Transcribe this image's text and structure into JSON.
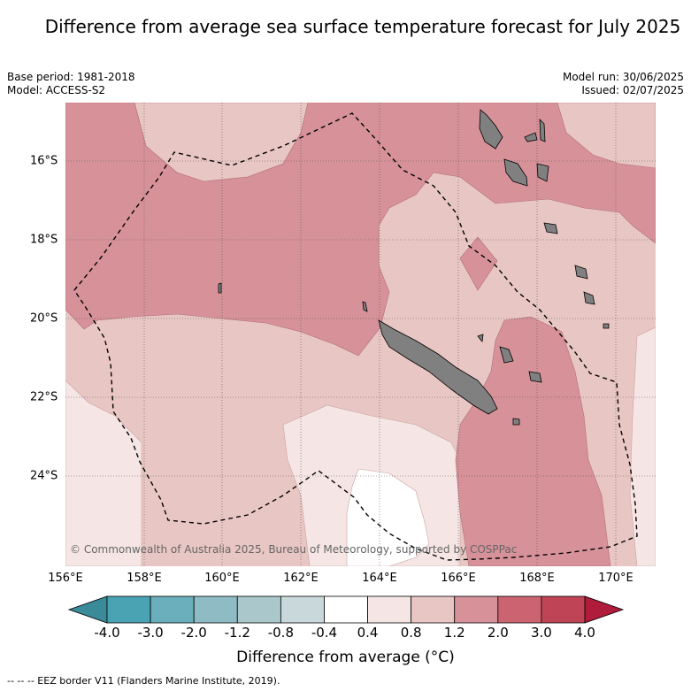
{
  "title": "Difference from average sea surface temperature forecast for July 2025",
  "base_period": "Base period: 1981-2018",
  "model": "Model: ACCESS-S2",
  "model_run": "Model run: 30/06/2025",
  "issued": "Issued: 02/07/2025",
  "copyright": "© Commonwealth of Australia 2025, Bureau of Meteorology, supported by COSPPac",
  "footer": "--  --  -- EEZ border V11 (Flanders Marine Institute, 2019).",
  "colorbar_title": "Difference from average (°C)",
  "lon_ticks": [
    "156°E",
    "158°E",
    "160°E",
    "162°E",
    "164°E",
    "166°E",
    "168°E",
    "170°E"
  ],
  "lat_ticks": [
    "16°S",
    "18°S",
    "20°S",
    "22°S",
    "24°S"
  ],
  "colorbar_labels": [
    "-4.0",
    "-3.0",
    "-2.0",
    "-1.2",
    "-0.8",
    "-0.4",
    "0.4",
    "0.8",
    "1.2",
    "2.0",
    "3.0",
    "4.0"
  ],
  "colorbar_colors": [
    "#4aa3b2",
    "#6aafbb",
    "#8fbcc4",
    "#aac8cb",
    "#c9d8da",
    "#ffffff",
    "#f5e6e5",
    "#e8c6c3",
    "#d69199",
    "#cc6370",
    "#bf4455"
  ],
  "colorbar_ext_colors": {
    "low": "#3a8a99",
    "high": "#b01c3b"
  },
  "fill_colors": {
    "0.4_0.8": "#f5e6e5",
    "0.8_1.2": "#e8c6c3",
    "1.2_2.0": "#d69199",
    "white": "#ffffff",
    "land": "#808080"
  }
}
